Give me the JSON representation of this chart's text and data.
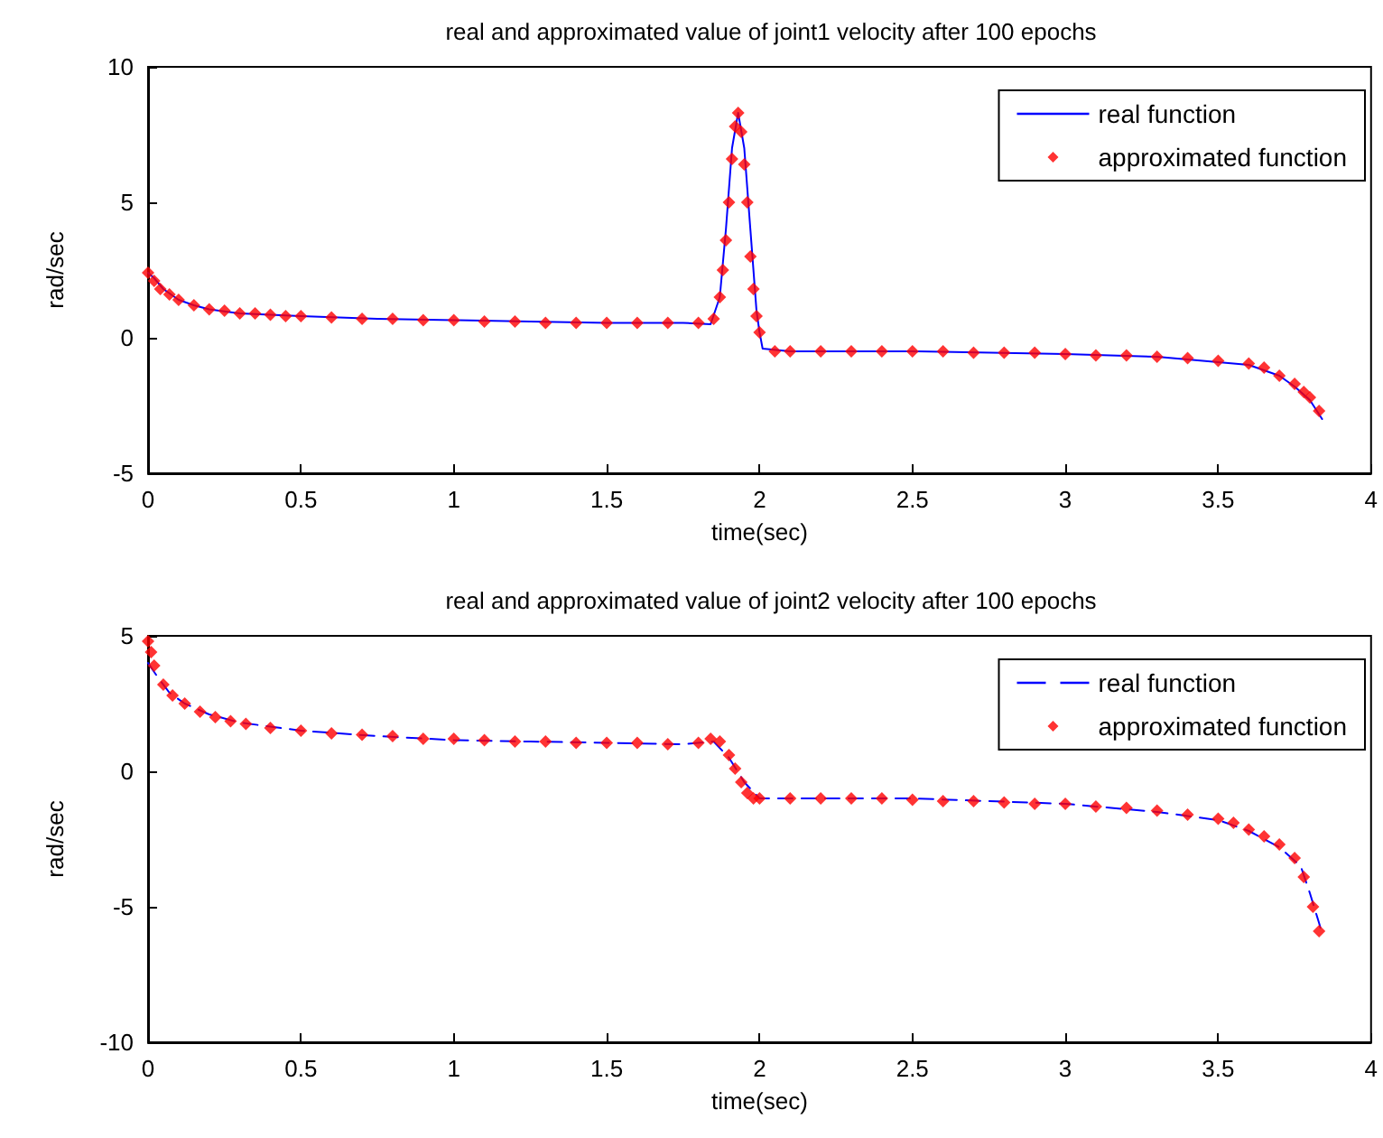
{
  "chart_data": [
    {
      "type": "line",
      "title": "real and approximated value of joint1 velocity after 100 epochs",
      "xlabel": "time(sec)",
      "ylabel": "rad/sec",
      "xlim": [
        0,
        4
      ],
      "xticks": [
        0,
        0.5,
        1,
        1.5,
        2,
        2.5,
        3,
        3.5,
        4
      ],
      "ylim": [
        -5,
        10
      ],
      "yticks": [
        -5,
        0,
        5,
        10
      ],
      "grid": false,
      "legend": "top right",
      "series": [
        {
          "name": "real function",
          "color": "#0000ff",
          "line_style": "solid",
          "marker": "none",
          "x": [
            0,
            0.02,
            0.05,
            0.1,
            0.15,
            0.2,
            0.3,
            0.5,
            0.75,
            1.0,
            1.25,
            1.5,
            1.75,
            1.84,
            1.87,
            1.89,
            1.91,
            1.93,
            1.95,
            1.97,
            1.99,
            2.0,
            2.01,
            2.1,
            2.5,
            3.0,
            3.3,
            3.5,
            3.6,
            3.7,
            3.75,
            3.8,
            3.84
          ],
          "values": [
            2.4,
            2.2,
            1.8,
            1.4,
            1.2,
            1.05,
            0.9,
            0.8,
            0.7,
            0.65,
            0.6,
            0.55,
            0.55,
            0.5,
            1.5,
            4,
            7,
            8.3,
            7,
            4,
            1,
            0.2,
            -0.4,
            -0.5,
            -0.5,
            -0.6,
            -0.7,
            -0.9,
            -1.0,
            -1.4,
            -1.8,
            -2.3,
            -3.0
          ]
        },
        {
          "name": "approximated function",
          "type": "scatter",
          "color": "#ff0000",
          "marker": "diamond",
          "x": [
            0,
            0.02,
            0.04,
            0.07,
            0.1,
            0.15,
            0.2,
            0.25,
            0.3,
            0.35,
            0.4,
            0.45,
            0.5,
            0.6,
            0.7,
            0.8,
            0.9,
            1.0,
            1.1,
            1.2,
            1.3,
            1.4,
            1.5,
            1.6,
            1.7,
            1.8,
            1.85,
            1.87,
            1.88,
            1.89,
            1.9,
            1.91,
            1.92,
            1.93,
            1.94,
            1.95,
            1.96,
            1.97,
            1.98,
            1.99,
            2.0,
            2.05,
            2.1,
            2.2,
            2.3,
            2.4,
            2.5,
            2.6,
            2.7,
            2.8,
            2.9,
            3.0,
            3.1,
            3.2,
            3.3,
            3.4,
            3.5,
            3.6,
            3.65,
            3.7,
            3.75,
            3.78,
            3.8,
            3.83
          ],
          "values": [
            2.4,
            2.1,
            1.8,
            1.6,
            1.4,
            1.2,
            1.05,
            1.0,
            0.9,
            0.9,
            0.85,
            0.8,
            0.8,
            0.75,
            0.7,
            0.7,
            0.65,
            0.65,
            0.6,
            0.6,
            0.55,
            0.55,
            0.55,
            0.55,
            0.55,
            0.55,
            0.7,
            1.5,
            2.5,
            3.6,
            5.0,
            6.6,
            7.8,
            8.3,
            7.6,
            6.4,
            5.0,
            3.0,
            1.8,
            0.8,
            0.2,
            -0.5,
            -0.5,
            -0.5,
            -0.5,
            -0.5,
            -0.5,
            -0.5,
            -0.55,
            -0.55,
            -0.55,
            -0.6,
            -0.65,
            -0.65,
            -0.7,
            -0.75,
            -0.85,
            -0.95,
            -1.1,
            -1.4,
            -1.7,
            -2.0,
            -2.2,
            -2.7
          ]
        }
      ]
    },
    {
      "type": "line",
      "title": "real and approximated value of joint2 velocity after 100 epochs",
      "xlabel": "time(sec)",
      "ylabel": "rad/sec",
      "xlim": [
        0,
        4
      ],
      "xticks": [
        0,
        0.5,
        1,
        1.5,
        2,
        2.5,
        3,
        3.5,
        4
      ],
      "ylim": [
        -10,
        5
      ],
      "yticks": [
        -10,
        -5,
        0,
        5
      ],
      "grid": false,
      "legend": "top right",
      "series": [
        {
          "name": "real function",
          "color": "#0000ff",
          "line_style": "dashed",
          "marker": "none",
          "x": [
            0,
            0.03,
            0.07,
            0.12,
            0.2,
            0.3,
            0.5,
            0.75,
            1.0,
            1.25,
            1.5,
            1.75,
            1.85,
            1.9,
            1.95,
            2.0,
            2.5,
            3.0,
            3.3,
            3.5,
            3.6,
            3.7,
            3.77,
            3.8,
            3.83,
            3.84
          ],
          "values": [
            4.0,
            3.5,
            2.9,
            2.5,
            2.1,
            1.8,
            1.5,
            1.3,
            1.15,
            1.1,
            1.05,
            1.0,
            1.1,
            0.5,
            -0.4,
            -1.0,
            -1.0,
            -1.2,
            -1.5,
            -1.8,
            -2.2,
            -2.8,
            -3.5,
            -4.5,
            -5.6,
            -6.0
          ]
        },
        {
          "name": "approximated function",
          "type": "scatter",
          "color": "#ff0000",
          "marker": "diamond",
          "x": [
            0,
            0.01,
            0.02,
            0.05,
            0.08,
            0.12,
            0.17,
            0.22,
            0.27,
            0.32,
            0.4,
            0.5,
            0.6,
            0.7,
            0.8,
            0.9,
            1.0,
            1.1,
            1.2,
            1.3,
            1.4,
            1.5,
            1.6,
            1.7,
            1.8,
            1.84,
            1.87,
            1.9,
            1.92,
            1.94,
            1.96,
            1.98,
            2.0,
            2.1,
            2.2,
            2.3,
            2.4,
            2.5,
            2.6,
            2.7,
            2.8,
            2.9,
            3.0,
            3.1,
            3.2,
            3.3,
            3.4,
            3.5,
            3.55,
            3.6,
            3.65,
            3.7,
            3.75,
            3.78,
            3.81,
            3.83
          ],
          "values": [
            4.8,
            4.4,
            3.9,
            3.2,
            2.8,
            2.5,
            2.2,
            2.0,
            1.85,
            1.75,
            1.6,
            1.5,
            1.4,
            1.35,
            1.3,
            1.2,
            1.2,
            1.15,
            1.1,
            1.1,
            1.05,
            1.05,
            1.05,
            1.0,
            1.05,
            1.2,
            1.1,
            0.6,
            0.1,
            -0.4,
            -0.8,
            -1.0,
            -1.0,
            -1.0,
            -1.0,
            -1.0,
            -1.0,
            -1.05,
            -1.1,
            -1.1,
            -1.15,
            -1.2,
            -1.2,
            -1.3,
            -1.35,
            -1.45,
            -1.6,
            -1.75,
            -1.9,
            -2.15,
            -2.4,
            -2.7,
            -3.2,
            -3.9,
            -5.0,
            -5.9
          ]
        }
      ]
    }
  ]
}
